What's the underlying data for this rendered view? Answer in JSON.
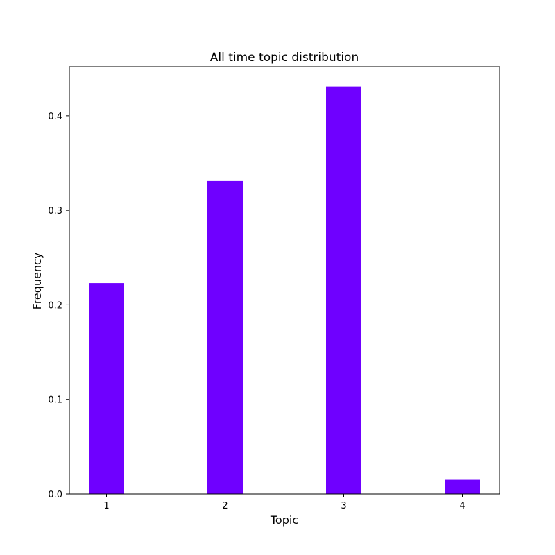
{
  "chart_data": {
    "type": "bar",
    "title": "All time topic distribution",
    "xlabel": "Topic",
    "ylabel": "Frequency",
    "categories": [
      "1",
      "2",
      "3",
      "4"
    ],
    "values": [
      0.223,
      0.331,
      0.431,
      0.015
    ],
    "ylim": [
      0,
      0.452
    ],
    "yticks": [
      0.0,
      0.1,
      0.2,
      0.3,
      0.4
    ],
    "ytick_labels": [
      "0.0",
      "0.1",
      "0.2",
      "0.3",
      "0.4"
    ],
    "grid": false,
    "legend": "none",
    "bar_color": "#6f00ff"
  }
}
